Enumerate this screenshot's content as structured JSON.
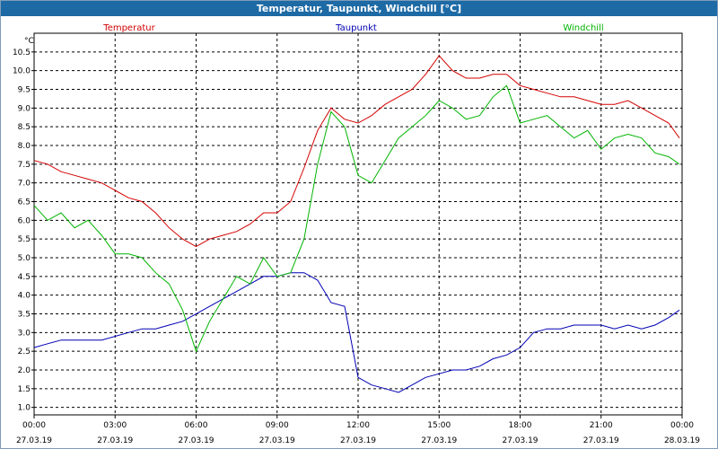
{
  "window": {
    "title": "Temperatur, Taupunkt, Windchill [°C]"
  },
  "chart_data": {
    "type": "line",
    "title": "Temperatur, Taupunkt, Windchill [°C]",
    "ylabel": "°C",
    "xlim": [
      0,
      24
    ],
    "ylim": [
      0.8,
      11.0
    ],
    "grid": true,
    "legend_placement": "top",
    "y_ticks": [
      "1.0",
      "1.5",
      "2.0",
      "2.5",
      "3.0",
      "3.5",
      "4.0",
      "4.5",
      "5.0",
      "5.5",
      "6.0",
      "6.5",
      "7.0",
      "7.5",
      "8.0",
      "8.5",
      "9.0",
      "9.5",
      "10.0",
      "10.5"
    ],
    "x_ticks": [
      {
        "time": "00:00",
        "date": "27.03.19"
      },
      {
        "time": "03:00",
        "date": "27.03.19"
      },
      {
        "time": "06:00",
        "date": "27.03.19"
      },
      {
        "time": "09:00",
        "date": "27.03.19"
      },
      {
        "time": "12:00",
        "date": "27.03.19"
      },
      {
        "time": "15:00",
        "date": "27.03.19"
      },
      {
        "time": "18:00",
        "date": "27.03.19"
      },
      {
        "time": "21:00",
        "date": "27.03.19"
      },
      {
        "time": "00:00",
        "date": "28.03.19"
      }
    ],
    "series": [
      {
        "name": "Temperatur",
        "color": "#d40000",
        "x": [
          0,
          0.5,
          1,
          1.5,
          2,
          2.5,
          3,
          3.5,
          4,
          4.5,
          5,
          5.5,
          6,
          6.5,
          7,
          7.5,
          8,
          8.5,
          9,
          9.5,
          10,
          10.5,
          11,
          11.5,
          12,
          12.5,
          13,
          13.5,
          14,
          14.5,
          15,
          15.5,
          16,
          16.5,
          17,
          17.5,
          18,
          18.5,
          19,
          19.5,
          20,
          20.5,
          21,
          21.5,
          22,
          22.5,
          23,
          23.5,
          23.9
        ],
        "values": [
          7.6,
          7.5,
          7.3,
          7.2,
          7.1,
          7.0,
          6.8,
          6.6,
          6.5,
          6.2,
          5.8,
          5.5,
          5.3,
          5.5,
          5.6,
          5.7,
          5.9,
          6.2,
          6.2,
          6.5,
          7.4,
          8.4,
          9.0,
          8.7,
          8.6,
          8.8,
          9.1,
          9.3,
          9.5,
          9.9,
          10.4,
          10.0,
          9.8,
          9.8,
          9.9,
          9.9,
          9.6,
          9.5,
          9.4,
          9.3,
          9.3,
          9.2,
          9.1,
          9.1,
          9.2,
          9.0,
          8.8,
          8.6,
          8.2
        ]
      },
      {
        "name": "Taupunkt",
        "color": "#0000b4",
        "x": [
          0,
          0.5,
          1,
          1.5,
          2,
          2.5,
          3,
          3.5,
          4,
          4.5,
          5,
          5.5,
          6,
          6.5,
          7,
          7.5,
          8,
          8.5,
          9,
          9.5,
          10,
          10.5,
          11,
          11.5,
          12,
          12.5,
          13,
          13.5,
          14,
          14.5,
          15,
          15.5,
          16,
          16.5,
          17,
          17.5,
          18,
          18.5,
          19,
          19.5,
          20,
          20.5,
          21,
          21.5,
          22,
          22.5,
          23,
          23.5,
          23.9
        ],
        "values": [
          2.6,
          2.7,
          2.8,
          2.8,
          2.8,
          2.8,
          2.9,
          3.0,
          3.1,
          3.1,
          3.2,
          3.3,
          3.5,
          3.7,
          3.9,
          4.1,
          4.3,
          4.5,
          4.5,
          4.6,
          4.6,
          4.4,
          3.8,
          3.7,
          1.8,
          1.6,
          1.5,
          1.4,
          1.6,
          1.8,
          1.9,
          2.0,
          2.0,
          2.1,
          2.3,
          2.4,
          2.6,
          3.0,
          3.1,
          3.1,
          3.2,
          3.2,
          3.2,
          3.1,
          3.2,
          3.1,
          3.2,
          3.4,
          3.6
        ]
      },
      {
        "name": "Windchill",
        "color": "#00b400",
        "x": [
          0,
          0.5,
          1,
          1.5,
          2,
          2.5,
          3,
          3.5,
          4,
          4.5,
          5,
          5.5,
          6,
          6.5,
          7,
          7.5,
          8,
          8.5,
          9,
          9.5,
          10,
          10.5,
          11,
          11.5,
          12,
          12.5,
          13,
          13.5,
          14,
          14.5,
          15,
          15.5,
          16,
          16.5,
          17,
          17.5,
          18,
          18.5,
          19,
          19.5,
          20,
          20.5,
          21,
          21.5,
          22,
          22.5,
          23,
          23.5,
          23.9
        ],
        "values": [
          6.4,
          6.0,
          6.2,
          5.8,
          6.0,
          5.6,
          5.1,
          5.1,
          5.0,
          4.6,
          4.3,
          3.6,
          2.5,
          3.3,
          3.9,
          4.5,
          4.3,
          5.0,
          4.5,
          4.6,
          5.5,
          7.5,
          8.9,
          8.5,
          7.2,
          7.0,
          7.6,
          8.2,
          8.5,
          8.8,
          9.2,
          9.0,
          8.7,
          8.8,
          9.3,
          9.6,
          8.6,
          8.7,
          8.8,
          8.5,
          8.2,
          8.4,
          7.9,
          8.2,
          8.3,
          8.2,
          7.8,
          7.7,
          7.5
        ]
      }
    ]
  }
}
